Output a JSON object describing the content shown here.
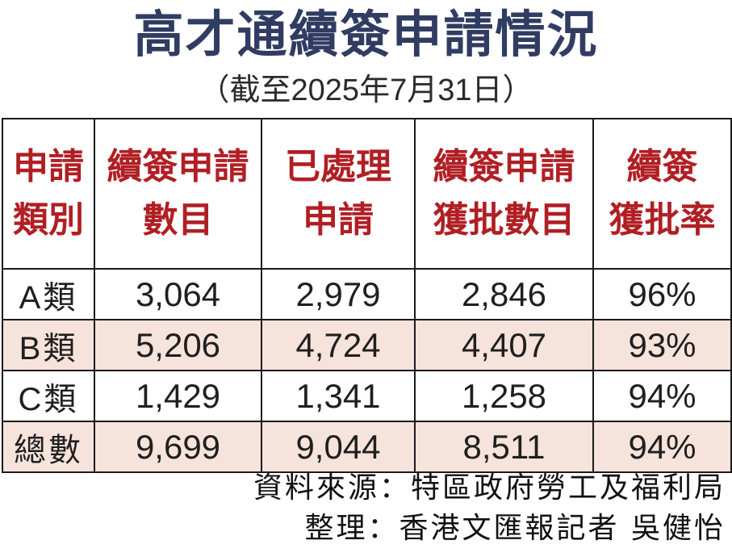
{
  "title": "高才通續簽申請情況",
  "subtitle": "（截至2025年7月31日）",
  "table": {
    "header_lines": [
      [
        "申請",
        "類別"
      ],
      [
        "續簽申請",
        "數目"
      ],
      [
        "已處理",
        "申請"
      ],
      [
        "續簽申請",
        "獲批數目"
      ],
      [
        "續簽",
        "獲批率"
      ]
    ]
  },
  "chart_data": {
    "type": "table",
    "title": "高才通續簽申請情況",
    "subtitle": "（截至2025年7月31日）",
    "columns": [
      "申請類別",
      "續簽申請數目",
      "已處理申請",
      "續簽申請獲批數目",
      "續簽獲批率"
    ],
    "rows": [
      [
        "A類",
        "3,064",
        "2,979",
        "2,846",
        "96%"
      ],
      [
        "B類",
        "5,206",
        "4,724",
        "4,407",
        "93%"
      ],
      [
        "C類",
        "1,429",
        "1,341",
        "1,258",
        "94%"
      ],
      [
        "總數",
        "9,699",
        "9,044",
        "8,511",
        "94%"
      ]
    ],
    "highlighted_rows": [
      "B類",
      "總數"
    ],
    "values_numeric": {
      "applications": [
        3064,
        5206,
        1429,
        9699
      ],
      "processed": [
        2979,
        4724,
        1341,
        9044
      ],
      "approved": [
        2846,
        4407,
        1258,
        8511
      ],
      "approval_rate_pct": [
        96,
        93,
        94,
        94
      ]
    }
  },
  "footer": {
    "source": "資料來源：特區政府勞工及福利局",
    "credit": "整理：香港文匯報記者 吳健怡"
  },
  "colors": {
    "title_navy": "#303c62",
    "header_red": "#b01f24",
    "row_highlight_pink": "#f6e3dc",
    "border_black": "#1a1a1a",
    "background": "#ffffff"
  }
}
